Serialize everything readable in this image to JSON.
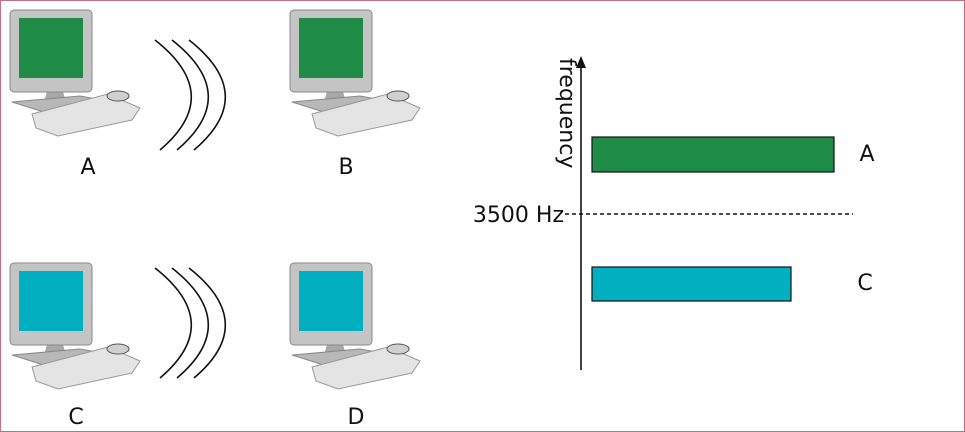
{
  "nodes": [
    {
      "label": "A",
      "color": "#1e8c47"
    },
    {
      "label": "B",
      "color": "#1e8c47"
    },
    {
      "label": "C",
      "color": "#00afc0"
    },
    {
      "label": "D",
      "color": "#00afc0"
    }
  ],
  "spectrum": {
    "axis_label": "frequency",
    "threshold_label": "3500 Hz",
    "bands": [
      {
        "label": "A",
        "color": "#1e8c47"
      },
      {
        "label": "C",
        "color": "#00afc0"
      }
    ]
  }
}
